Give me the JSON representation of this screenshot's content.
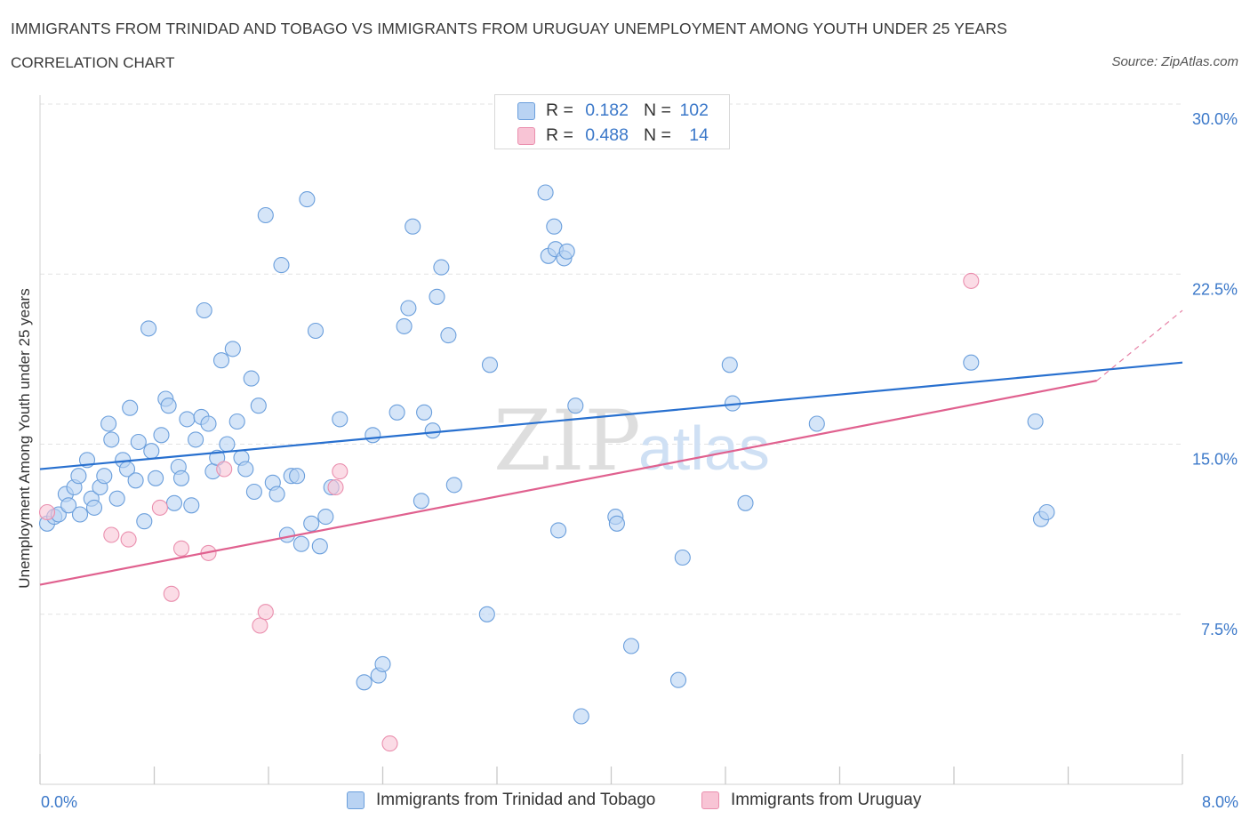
{
  "title": "IMMIGRANTS FROM TRINIDAD AND TOBAGO VS IMMIGRANTS FROM URUGUAY UNEMPLOYMENT AMONG YOUTH UNDER 25 YEARS",
  "subtitle": "CORRELATION CHART",
  "source": "Source: ZipAtlas.com",
  "watermark": {
    "zip": "ZIP",
    "atlas": "atlas"
  },
  "colors": {
    "blue_fill": "#b9d3f3",
    "blue_stroke": "#6b9fdc",
    "blue_line": "#2870cf",
    "pink_fill": "#f8c4d5",
    "pink_stroke": "#ea8fae",
    "pink_line": "#e0618f",
    "value_text": "#3b78c9",
    "grid": "#e3e3e3"
  },
  "stat_legend": [
    {
      "series": "trinidad",
      "r_label": "R =",
      "r_value": "0.182",
      "n_label": "N =",
      "n_value": "102"
    },
    {
      "series": "uruguay",
      "r_label": "R =",
      "r_value": "0.488",
      "n_label": "N =",
      "n_value": "14"
    }
  ],
  "chart_data": {
    "type": "scatter",
    "xlabel": "",
    "ylabel": "Unemployment Among Youth under 25 years",
    "xlim": [
      0,
      8
    ],
    "ylim": [
      0,
      30
    ],
    "x_tick_labels": [
      {
        "value": 0,
        "label": "0.0%"
      },
      {
        "value": 8,
        "label": "8.0%"
      }
    ],
    "y_tick_labels": [
      {
        "value": 7.5,
        "label": "7.5%"
      },
      {
        "value": 15,
        "label": "15.0%"
      },
      {
        "value": 22.5,
        "label": "22.5%"
      },
      {
        "value": 30,
        "label": "30.0%"
      }
    ],
    "y_gridlines": [
      7.5,
      15,
      22.5,
      30
    ],
    "legend_position": "bottom",
    "series": [
      {
        "name": "Immigrants from Trinidad and Tobago",
        "key": "trinidad",
        "r": 0.182,
        "n": 102,
        "trendline": {
          "x": [
            0,
            8
          ],
          "y": [
            13.9,
            18.6
          ]
        },
        "points": [
          [
            0.05,
            11.5
          ],
          [
            0.1,
            11.8
          ],
          [
            0.13,
            11.9
          ],
          [
            0.18,
            12.8
          ],
          [
            0.2,
            12.3
          ],
          [
            0.24,
            13.1
          ],
          [
            0.27,
            13.6
          ],
          [
            0.28,
            11.9
          ],
          [
            0.33,
            14.3
          ],
          [
            0.36,
            12.6
          ],
          [
            0.38,
            12.2
          ],
          [
            0.42,
            13.1
          ],
          [
            0.45,
            13.6
          ],
          [
            0.48,
            15.9
          ],
          [
            0.5,
            15.2
          ],
          [
            0.54,
            12.6
          ],
          [
            0.58,
            14.3
          ],
          [
            0.61,
            13.9
          ],
          [
            0.63,
            16.6
          ],
          [
            0.67,
            13.4
          ],
          [
            0.69,
            15.1
          ],
          [
            0.73,
            11.6
          ],
          [
            0.76,
            20.1
          ],
          [
            0.78,
            14.7
          ],
          [
            0.81,
            13.5
          ],
          [
            0.85,
            15.4
          ],
          [
            0.88,
            17.0
          ],
          [
            0.9,
            16.7
          ],
          [
            0.94,
            12.4
          ],
          [
            0.97,
            14.0
          ],
          [
            0.99,
            13.5
          ],
          [
            1.03,
            16.1
          ],
          [
            1.06,
            12.3
          ],
          [
            1.09,
            15.2
          ],
          [
            1.13,
            16.2
          ],
          [
            1.15,
            20.9
          ],
          [
            1.18,
            15.9
          ],
          [
            1.21,
            13.8
          ],
          [
            1.24,
            14.4
          ],
          [
            1.27,
            18.7
          ],
          [
            1.31,
            15.0
          ],
          [
            1.35,
            19.2
          ],
          [
            1.38,
            16.0
          ],
          [
            1.41,
            14.4
          ],
          [
            1.44,
            13.9
          ],
          [
            1.48,
            17.9
          ],
          [
            1.5,
            12.9
          ],
          [
            1.53,
            16.7
          ],
          [
            1.58,
            25.1
          ],
          [
            1.63,
            13.3
          ],
          [
            1.66,
            12.8
          ],
          [
            1.69,
            22.9
          ],
          [
            1.73,
            11.0
          ],
          [
            1.76,
            13.6
          ],
          [
            1.8,
            13.6
          ],
          [
            1.83,
            10.6
          ],
          [
            1.87,
            25.8
          ],
          [
            1.9,
            11.5
          ],
          [
            1.93,
            20.0
          ],
          [
            1.96,
            10.5
          ],
          [
            2.0,
            11.8
          ],
          [
            2.04,
            13.1
          ],
          [
            2.1,
            16.1
          ],
          [
            2.27,
            4.5
          ],
          [
            2.33,
            15.4
          ],
          [
            2.37,
            4.8
          ],
          [
            2.4,
            5.3
          ],
          [
            2.5,
            16.4
          ],
          [
            2.55,
            20.2
          ],
          [
            2.58,
            21.0
          ],
          [
            2.61,
            24.6
          ],
          [
            2.67,
            12.5
          ],
          [
            2.69,
            16.4
          ],
          [
            2.75,
            15.6
          ],
          [
            2.78,
            21.5
          ],
          [
            2.81,
            22.8
          ],
          [
            2.86,
            19.8
          ],
          [
            2.9,
            13.2
          ],
          [
            3.13,
            7.5
          ],
          [
            3.15,
            18.5
          ],
          [
            3.54,
            26.1
          ],
          [
            3.56,
            23.3
          ],
          [
            3.6,
            24.6
          ],
          [
            3.61,
            23.6
          ],
          [
            3.63,
            11.2
          ],
          [
            3.67,
            23.2
          ],
          [
            3.69,
            23.5
          ],
          [
            3.75,
            16.7
          ],
          [
            3.79,
            3.0
          ],
          [
            4.03,
            11.8
          ],
          [
            4.04,
            11.5
          ],
          [
            4.14,
            6.1
          ],
          [
            4.47,
            4.6
          ],
          [
            4.5,
            10.0
          ],
          [
            4.83,
            18.5
          ],
          [
            4.85,
            16.8
          ],
          [
            4.94,
            12.4
          ],
          [
            5.44,
            15.9
          ],
          [
            6.52,
            18.6
          ],
          [
            6.97,
            16.0
          ],
          [
            7.01,
            11.7
          ],
          [
            7.05,
            12.0
          ]
        ]
      },
      {
        "name": "Immigrants from Uruguay",
        "key": "uruguay",
        "r": 0.488,
        "n": 14,
        "trendline": {
          "x": [
            0,
            7.4
          ],
          "y": [
            8.8,
            17.8
          ]
        },
        "trendline_extension": {
          "x": [
            7.4,
            8
          ],
          "y": [
            17.8,
            20.9
          ]
        },
        "points": [
          [
            0.05,
            12.0
          ],
          [
            0.5,
            11.0
          ],
          [
            0.62,
            10.8
          ],
          [
            0.84,
            12.2
          ],
          [
            0.92,
            8.4
          ],
          [
            0.99,
            10.4
          ],
          [
            1.18,
            10.2
          ],
          [
            1.29,
            13.9
          ],
          [
            1.54,
            7.0
          ],
          [
            1.58,
            7.6
          ],
          [
            2.07,
            13.1
          ],
          [
            2.1,
            13.8
          ],
          [
            2.45,
            1.8
          ],
          [
            6.52,
            22.2
          ]
        ]
      }
    ]
  },
  "legend_bottom": [
    {
      "key": "trinidad",
      "label": "Immigrants from Trinidad and Tobago"
    },
    {
      "key": "uruguay",
      "label": "Immigrants from Uruguay"
    }
  ]
}
